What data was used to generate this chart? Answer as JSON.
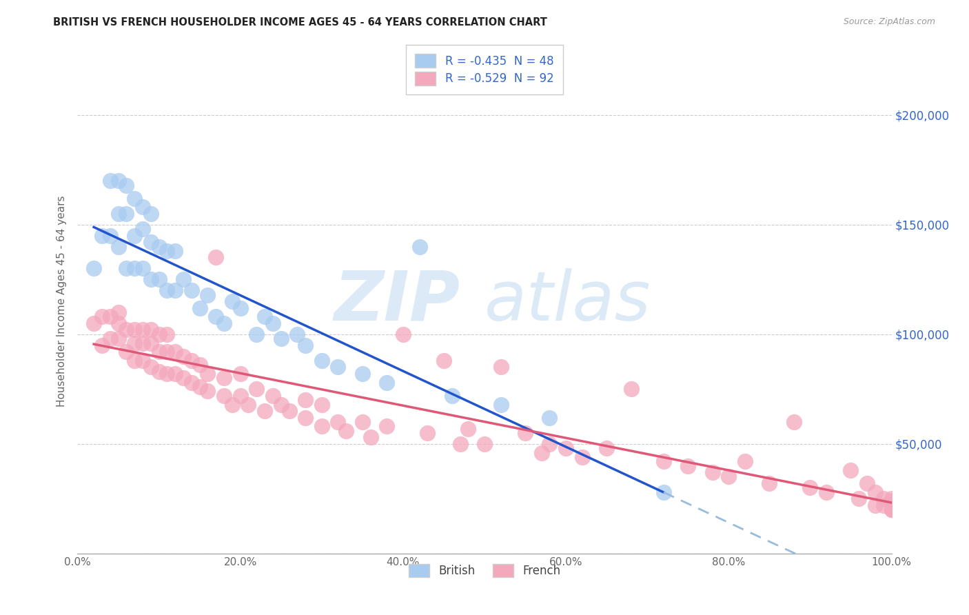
{
  "title": "BRITISH VS FRENCH HOUSEHOLDER INCOME AGES 45 - 64 YEARS CORRELATION CHART",
  "source_text": "Source: ZipAtlas.com",
  "ylabel": "Householder Income Ages 45 - 64 years",
  "xlabel": "",
  "watermark_zip": "ZIP",
  "watermark_atlas": "atlas",
  "legend_british": "R = -0.435  N = 48",
  "legend_french": "R = -0.529  N = 92",
  "xlim": [
    0.0,
    1.0
  ],
  "ylim": [
    0,
    230000
  ],
  "yticks": [
    0,
    50000,
    100000,
    150000,
    200000
  ],
  "ytick_labels": [
    "",
    "$50,000",
    "$100,000",
    "$150,000",
    "$200,000"
  ],
  "xtick_labels": [
    "0.0%",
    "20.0%",
    "40.0%",
    "60.0%",
    "80.0%",
    "100.0%"
  ],
  "xticks": [
    0.0,
    0.2,
    0.4,
    0.6,
    0.8,
    1.0
  ],
  "british_color": "#A8CBF0",
  "french_color": "#F4A8BC",
  "british_line_color": "#2255CC",
  "french_line_color": "#E05878",
  "dashed_color": "#99BBDD",
  "background_color": "#FFFFFF",
  "grid_color": "#CCCCCC",
  "british_x": [
    0.02,
    0.03,
    0.04,
    0.04,
    0.05,
    0.05,
    0.05,
    0.06,
    0.06,
    0.06,
    0.07,
    0.07,
    0.07,
    0.08,
    0.08,
    0.08,
    0.09,
    0.09,
    0.09,
    0.1,
    0.1,
    0.11,
    0.11,
    0.12,
    0.12,
    0.13,
    0.14,
    0.15,
    0.16,
    0.17,
    0.18,
    0.19,
    0.2,
    0.22,
    0.23,
    0.24,
    0.25,
    0.27,
    0.28,
    0.3,
    0.32,
    0.35,
    0.38,
    0.42,
    0.46,
    0.52,
    0.58,
    0.72
  ],
  "british_y": [
    130000,
    145000,
    145000,
    170000,
    140000,
    155000,
    170000,
    130000,
    155000,
    168000,
    130000,
    145000,
    162000,
    130000,
    148000,
    158000,
    125000,
    142000,
    155000,
    125000,
    140000,
    120000,
    138000,
    120000,
    138000,
    125000,
    120000,
    112000,
    118000,
    108000,
    105000,
    115000,
    112000,
    100000,
    108000,
    105000,
    98000,
    100000,
    95000,
    88000,
    85000,
    82000,
    78000,
    140000,
    72000,
    68000,
    62000,
    28000
  ],
  "french_x": [
    0.02,
    0.03,
    0.03,
    0.04,
    0.04,
    0.05,
    0.05,
    0.05,
    0.06,
    0.06,
    0.07,
    0.07,
    0.07,
    0.08,
    0.08,
    0.08,
    0.09,
    0.09,
    0.09,
    0.1,
    0.1,
    0.1,
    0.11,
    0.11,
    0.11,
    0.12,
    0.12,
    0.13,
    0.13,
    0.14,
    0.14,
    0.15,
    0.15,
    0.16,
    0.16,
    0.17,
    0.18,
    0.18,
    0.19,
    0.2,
    0.2,
    0.21,
    0.22,
    0.23,
    0.24,
    0.25,
    0.26,
    0.28,
    0.28,
    0.3,
    0.3,
    0.32,
    0.33,
    0.35,
    0.36,
    0.38,
    0.4,
    0.43,
    0.45,
    0.47,
    0.48,
    0.5,
    0.52,
    0.55,
    0.57,
    0.58,
    0.6,
    0.62,
    0.65,
    0.68,
    0.72,
    0.75,
    0.78,
    0.8,
    0.82,
    0.85,
    0.88,
    0.9,
    0.92,
    0.95,
    0.96,
    0.97,
    0.98,
    0.98,
    0.99,
    0.99,
    1.0,
    1.0,
    1.0,
    1.0,
    1.0,
    1.0
  ],
  "french_y": [
    105000,
    95000,
    108000,
    98000,
    108000,
    98000,
    105000,
    110000,
    92000,
    102000,
    88000,
    96000,
    102000,
    88000,
    96000,
    102000,
    85000,
    96000,
    102000,
    83000,
    92000,
    100000,
    82000,
    92000,
    100000,
    82000,
    92000,
    80000,
    90000,
    78000,
    88000,
    76000,
    86000,
    74000,
    82000,
    135000,
    72000,
    80000,
    68000,
    72000,
    82000,
    68000,
    75000,
    65000,
    72000,
    68000,
    65000,
    62000,
    70000,
    58000,
    68000,
    60000,
    56000,
    60000,
    53000,
    58000,
    100000,
    55000,
    88000,
    50000,
    57000,
    50000,
    85000,
    55000,
    46000,
    50000,
    48000,
    44000,
    48000,
    75000,
    42000,
    40000,
    37000,
    35000,
    42000,
    32000,
    60000,
    30000,
    28000,
    38000,
    25000,
    32000,
    22000,
    28000,
    22000,
    25000,
    20000,
    25000,
    20000,
    24000,
    20000,
    22000
  ]
}
